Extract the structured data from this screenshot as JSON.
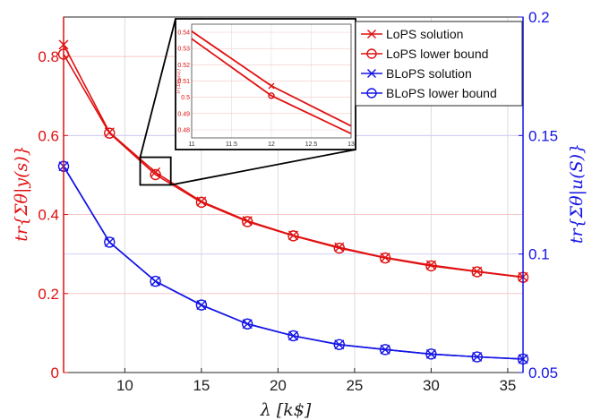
{
  "chart_data": {
    "type": "line",
    "xlabel": "λ [k$]",
    "ylabel_left": "tr{Σθ|y(s)}",
    "ylabel_right": "tr{Σθ|u(S)}",
    "xlim": [
      6,
      36
    ],
    "ylim_left": [
      0,
      0.9
    ],
    "ylim_right": [
      0.05,
      0.2
    ],
    "x_ticks": [
      "10",
      "15",
      "20",
      "25",
      "30",
      "35"
    ],
    "y_left_ticks": [
      "0",
      "0.2",
      "0.4",
      "0.6",
      "0.8"
    ],
    "y_right_ticks": [
      "0.05",
      "0.1",
      "0.15",
      "0.2"
    ],
    "grid": true,
    "legend_position": "top-right",
    "x": [
      6,
      9,
      12,
      15,
      18,
      21,
      24,
      27,
      30,
      33,
      36
    ],
    "series": [
      {
        "name": "LoPS solution",
        "axis": "left",
        "color": "#e01010",
        "marker": "x",
        "values": [
          0.83,
          0.608,
          0.507,
          0.433,
          0.384,
          0.347,
          0.317,
          0.291,
          0.272,
          0.256,
          0.242
        ]
      },
      {
        "name": "LoPS lower bound",
        "axis": "left",
        "color": "#e01010",
        "marker": "o",
        "values": [
          0.806,
          0.606,
          0.501,
          0.431,
          0.382,
          0.346,
          0.315,
          0.29,
          0.27,
          0.255,
          0.241
        ]
      },
      {
        "name": "BLoPS solution",
        "axis": "right",
        "color": "#1414e6",
        "marker": "x",
        "values": [
          0.137,
          0.105,
          0.0885,
          0.0785,
          0.0705,
          0.0655,
          0.0618,
          0.0597,
          0.0578,
          0.0566,
          0.0557
        ]
      },
      {
        "name": "BLoPS lower bound",
        "axis": "right",
        "color": "#1414e6",
        "marker": "o",
        "values": [
          0.137,
          0.105,
          0.0885,
          0.0785,
          0.0705,
          0.0655,
          0.0618,
          0.0597,
          0.0578,
          0.0566,
          0.0557
        ]
      }
    ],
    "inset": {
      "xlim": [
        11,
        13
      ],
      "ylim": [
        0.475,
        0.545
      ],
      "x_ticks": [
        "11",
        "11.5",
        "12",
        "12.5",
        "13"
      ],
      "y_ticks": [
        "0.48",
        "0.49",
        "0.5",
        "0.51",
        "0.52",
        "0.53",
        "0.54"
      ],
      "ylabel": "tr{Σθ|y(s)}"
    }
  }
}
